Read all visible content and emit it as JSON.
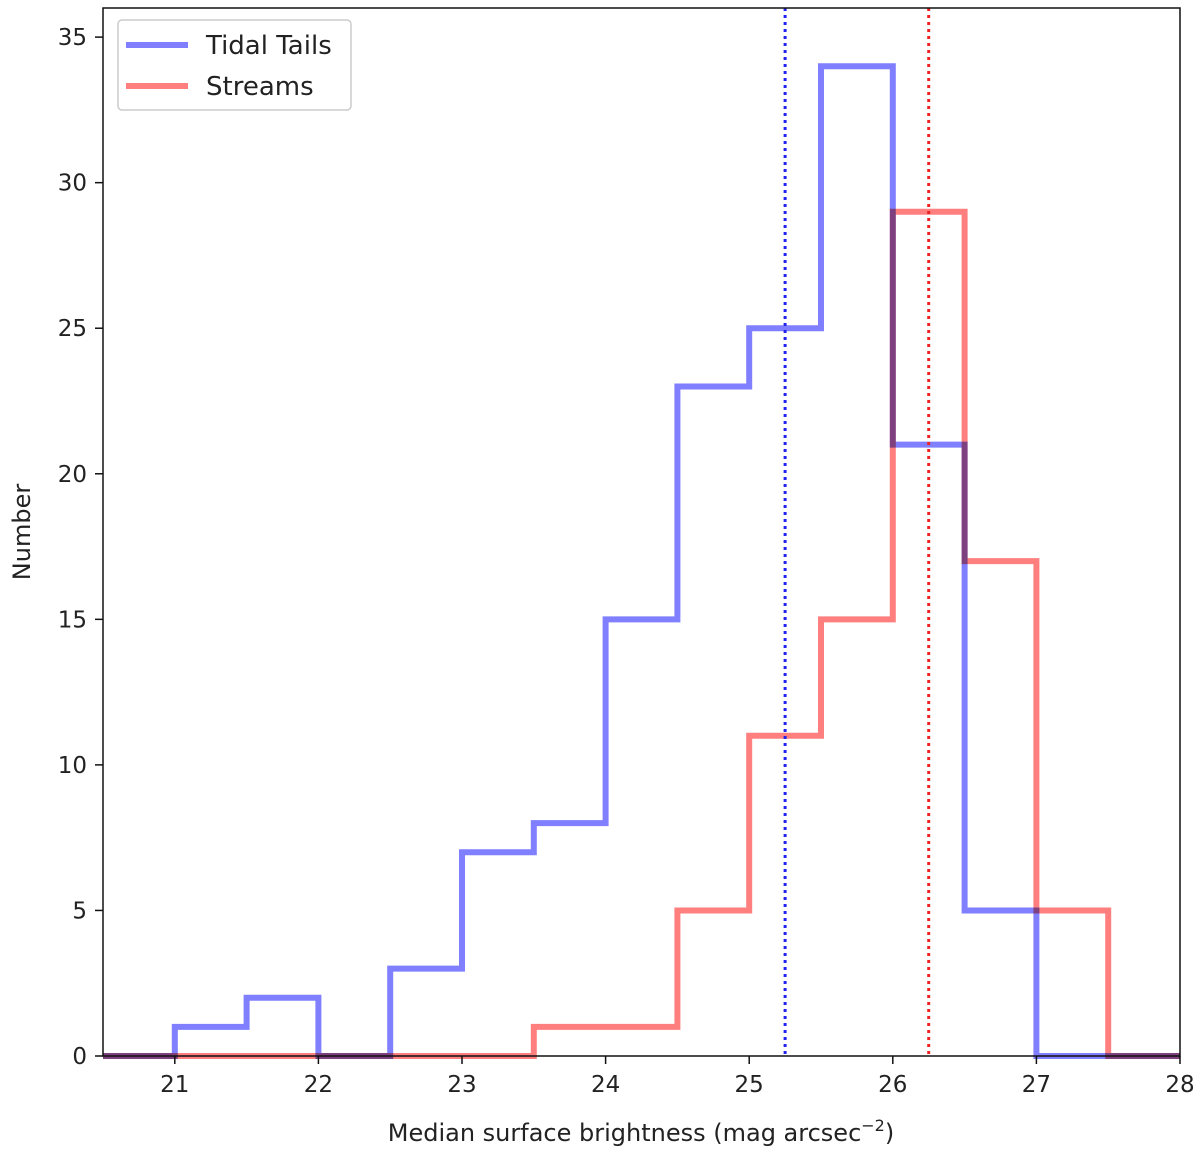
{
  "chart_data": {
    "type": "histogram",
    "title": "",
    "xlabel": "Median surface brightness (mag arcsec",
    "xlabel_superscript": "−2",
    "xlabel_close": ")",
    "ylabel": "Number",
    "xlim": [
      20.5,
      28
    ],
    "ylim": [
      0,
      36
    ],
    "xticks": [
      21,
      22,
      23,
      24,
      25,
      26,
      27,
      28
    ],
    "xtick_labels": [
      "21",
      "22",
      "23",
      "24",
      "25",
      "26",
      "27",
      "28"
    ],
    "yticks": [
      0,
      5,
      10,
      15,
      20,
      25,
      30,
      35
    ],
    "ytick_labels": [
      "0",
      "5",
      "10",
      "15",
      "20",
      "25",
      "30",
      "35"
    ],
    "grid": false,
    "legend_position": "top-left",
    "bin_edges": [
      20.5,
      21.0,
      21.5,
      22.0,
      22.5,
      23.0,
      23.5,
      24.0,
      24.5,
      25.0,
      25.5,
      26.0,
      26.5,
      27.0,
      27.5,
      28.0
    ],
    "series": [
      {
        "name": "Tidal Tails",
        "color": "#7f7fff",
        "counts": [
          0,
          1,
          2,
          0,
          3,
          7,
          8,
          15,
          23,
          25,
          34,
          21,
          5,
          0,
          0
        ],
        "median": 25.25,
        "median_color": "#2222ee"
      },
      {
        "name": "Streams",
        "color": "#ff7f7f",
        "counts": [
          0,
          0,
          0,
          0,
          0,
          0,
          1,
          1,
          5,
          11,
          15,
          29,
          17,
          5,
          0
        ],
        "median": 26.25,
        "median_color": "#ee2222"
      }
    ]
  }
}
